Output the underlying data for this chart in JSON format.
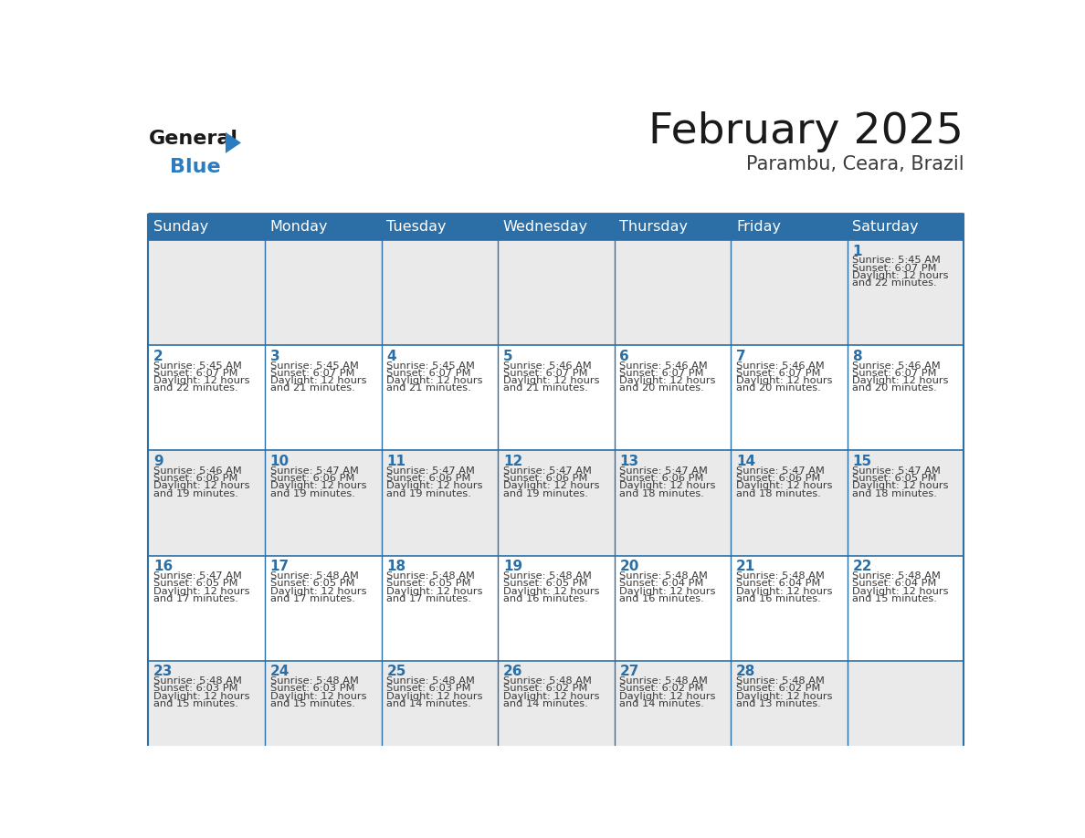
{
  "title": "February 2025",
  "subtitle": "Parambu, Ceara, Brazil",
  "days_of_week": [
    "Sunday",
    "Monday",
    "Tuesday",
    "Wednesday",
    "Thursday",
    "Friday",
    "Saturday"
  ],
  "header_bg": "#2C6FA6",
  "header_text": "#FFFFFF",
  "row_bg_even": "#EAEAEA",
  "row_bg_odd": "#FFFFFF",
  "day_number_color": "#2C6FA6",
  "info_text_color": "#3a3a3a",
  "border_color": "#2C6FA6",
  "title_color": "#1a1a1a",
  "subtitle_color": "#3a3a3a",
  "logo_text_color": "#1a1a1a",
  "logo_blue_color": "#2C7CC4",
  "calendar": [
    [
      null,
      null,
      null,
      null,
      null,
      null,
      {
        "day": 1,
        "sunrise": "5:45 AM",
        "sunset": "6:07 PM",
        "daylight": "12 hours",
        "daylight2": "and 22 minutes."
      }
    ],
    [
      {
        "day": 2,
        "sunrise": "5:45 AM",
        "sunset": "6:07 PM",
        "daylight": "12 hours",
        "daylight2": "and 22 minutes."
      },
      {
        "day": 3,
        "sunrise": "5:45 AM",
        "sunset": "6:07 PM",
        "daylight": "12 hours",
        "daylight2": "and 21 minutes."
      },
      {
        "day": 4,
        "sunrise": "5:45 AM",
        "sunset": "6:07 PM",
        "daylight": "12 hours",
        "daylight2": "and 21 minutes."
      },
      {
        "day": 5,
        "sunrise": "5:46 AM",
        "sunset": "6:07 PM",
        "daylight": "12 hours",
        "daylight2": "and 21 minutes."
      },
      {
        "day": 6,
        "sunrise": "5:46 AM",
        "sunset": "6:07 PM",
        "daylight": "12 hours",
        "daylight2": "and 20 minutes."
      },
      {
        "day": 7,
        "sunrise": "5:46 AM",
        "sunset": "6:07 PM",
        "daylight": "12 hours",
        "daylight2": "and 20 minutes."
      },
      {
        "day": 8,
        "sunrise": "5:46 AM",
        "sunset": "6:07 PM",
        "daylight": "12 hours",
        "daylight2": "and 20 minutes."
      }
    ],
    [
      {
        "day": 9,
        "sunrise": "5:46 AM",
        "sunset": "6:06 PM",
        "daylight": "12 hours",
        "daylight2": "and 19 minutes."
      },
      {
        "day": 10,
        "sunrise": "5:47 AM",
        "sunset": "6:06 PM",
        "daylight": "12 hours",
        "daylight2": "and 19 minutes."
      },
      {
        "day": 11,
        "sunrise": "5:47 AM",
        "sunset": "6:06 PM",
        "daylight": "12 hours",
        "daylight2": "and 19 minutes."
      },
      {
        "day": 12,
        "sunrise": "5:47 AM",
        "sunset": "6:06 PM",
        "daylight": "12 hours",
        "daylight2": "and 19 minutes."
      },
      {
        "day": 13,
        "sunrise": "5:47 AM",
        "sunset": "6:06 PM",
        "daylight": "12 hours",
        "daylight2": "and 18 minutes."
      },
      {
        "day": 14,
        "sunrise": "5:47 AM",
        "sunset": "6:06 PM",
        "daylight": "12 hours",
        "daylight2": "and 18 minutes."
      },
      {
        "day": 15,
        "sunrise": "5:47 AM",
        "sunset": "6:05 PM",
        "daylight": "12 hours",
        "daylight2": "and 18 minutes."
      }
    ],
    [
      {
        "day": 16,
        "sunrise": "5:47 AM",
        "sunset": "6:05 PM",
        "daylight": "12 hours",
        "daylight2": "and 17 minutes."
      },
      {
        "day": 17,
        "sunrise": "5:48 AM",
        "sunset": "6:05 PM",
        "daylight": "12 hours",
        "daylight2": "and 17 minutes."
      },
      {
        "day": 18,
        "sunrise": "5:48 AM",
        "sunset": "6:05 PM",
        "daylight": "12 hours",
        "daylight2": "and 17 minutes."
      },
      {
        "day": 19,
        "sunrise": "5:48 AM",
        "sunset": "6:05 PM",
        "daylight": "12 hours",
        "daylight2": "and 16 minutes."
      },
      {
        "day": 20,
        "sunrise": "5:48 AM",
        "sunset": "6:04 PM",
        "daylight": "12 hours",
        "daylight2": "and 16 minutes."
      },
      {
        "day": 21,
        "sunrise": "5:48 AM",
        "sunset": "6:04 PM",
        "daylight": "12 hours",
        "daylight2": "and 16 minutes."
      },
      {
        "day": 22,
        "sunrise": "5:48 AM",
        "sunset": "6:04 PM",
        "daylight": "12 hours",
        "daylight2": "and 15 minutes."
      }
    ],
    [
      {
        "day": 23,
        "sunrise": "5:48 AM",
        "sunset": "6:03 PM",
        "daylight": "12 hours",
        "daylight2": "and 15 minutes."
      },
      {
        "day": 24,
        "sunrise": "5:48 AM",
        "sunset": "6:03 PM",
        "daylight": "12 hours",
        "daylight2": "and 15 minutes."
      },
      {
        "day": 25,
        "sunrise": "5:48 AM",
        "sunset": "6:03 PM",
        "daylight": "12 hours",
        "daylight2": "and 14 minutes."
      },
      {
        "day": 26,
        "sunrise": "5:48 AM",
        "sunset": "6:02 PM",
        "daylight": "12 hours",
        "daylight2": "and 14 minutes."
      },
      {
        "day": 27,
        "sunrise": "5:48 AM",
        "sunset": "6:02 PM",
        "daylight": "12 hours",
        "daylight2": "and 14 minutes."
      },
      {
        "day": 28,
        "sunrise": "5:48 AM",
        "sunset": "6:02 PM",
        "daylight": "12 hours",
        "daylight2": "and 13 minutes."
      },
      null
    ]
  ]
}
